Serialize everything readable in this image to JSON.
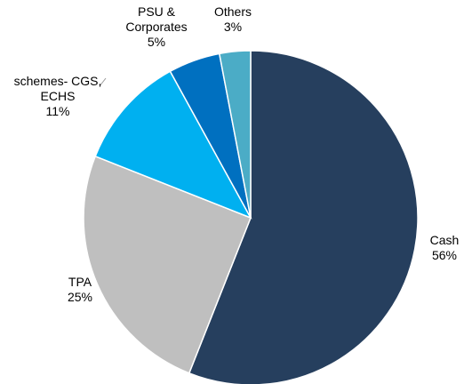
{
  "chart_data": {
    "type": "pie",
    "categories": [
      "Cash",
      "TPA",
      "schemes- CGS,\nECHS",
      "PSU &\nCorporates",
      "Others"
    ],
    "values": [
      56,
      25,
      11,
      5,
      3
    ],
    "value_labels": [
      "56%",
      "25%",
      "11%",
      "5%",
      "3%"
    ],
    "colors": [
      "#263f5e",
      "#bfbfbf",
      "#00b0f0",
      "#0070c0",
      "#4bacc6"
    ]
  }
}
